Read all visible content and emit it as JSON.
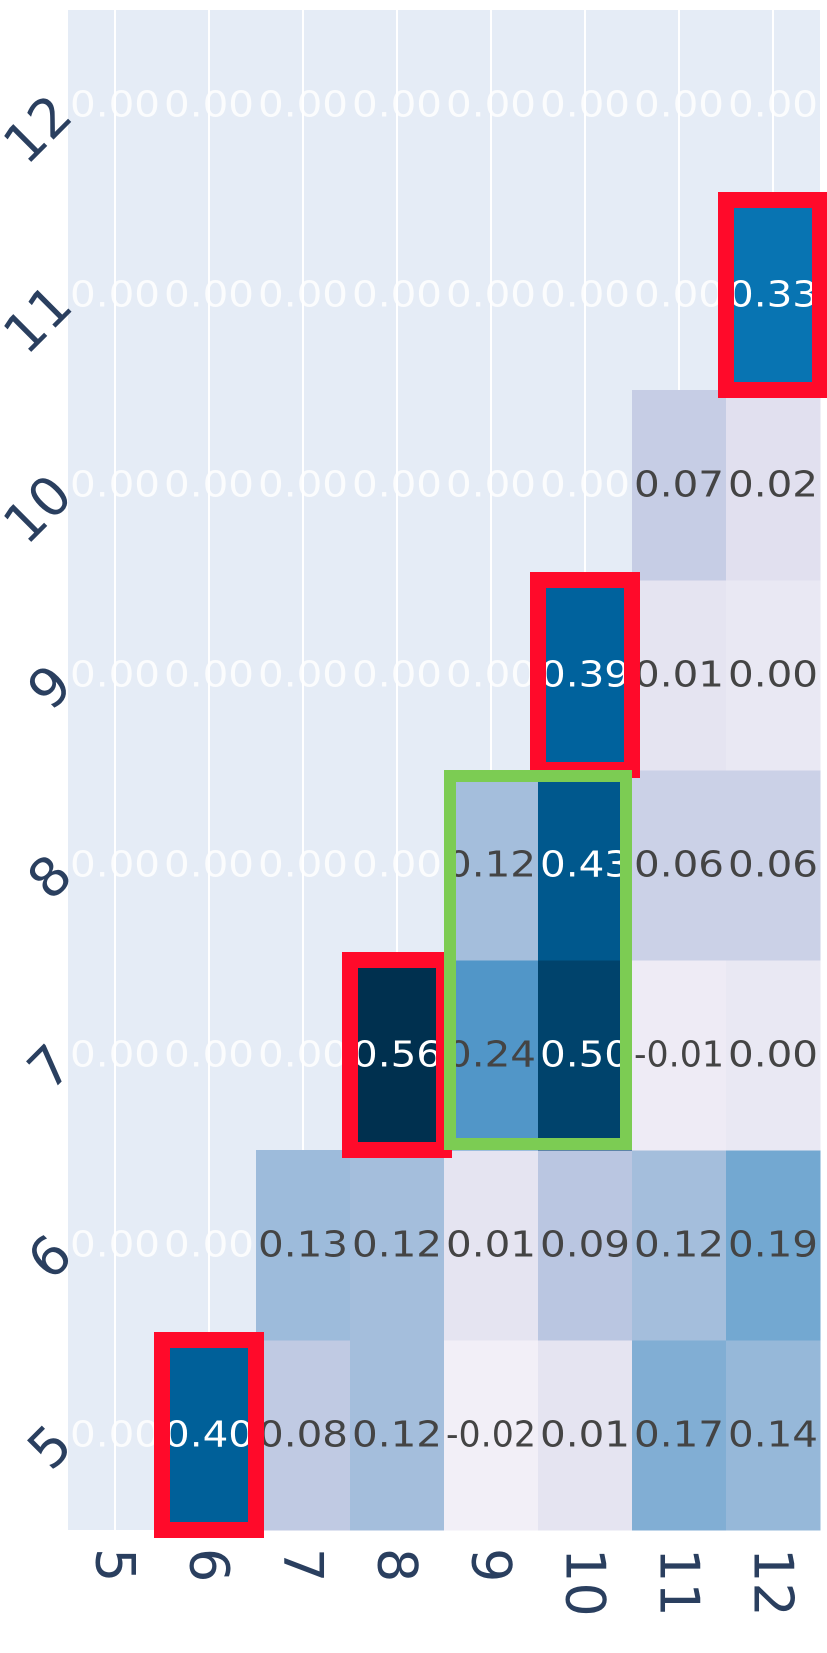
{
  "chart_data": {
    "type": "heatmap",
    "title": "",
    "xlabel": "",
    "ylabel": "",
    "x_categories": [
      "5",
      "6",
      "7",
      "8",
      "9",
      "10",
      "11",
      "12"
    ],
    "y_categories": [
      "5",
      "6",
      "7",
      "8",
      "9",
      "10",
      "11",
      "12"
    ],
    "x_tick_labels": [
      "5",
      "6",
      "7",
      "8",
      "9",
      "10",
      "11",
      "12"
    ],
    "y_tick_labels": [
      "5",
      "6",
      "7",
      "8",
      "9",
      "10",
      "11",
      "12"
    ],
    "colorscale": [
      "#f2eff7",
      "#00304f"
    ],
    "zlim": [
      -0.02,
      0.56
    ],
    "grid": true,
    "z": [
      [
        0.0,
        0.4,
        0.08,
        0.12,
        -0.02,
        0.01,
        0.17,
        0.14
      ],
      [
        0.0,
        0.0,
        0.13,
        0.12,
        0.01,
        0.09,
        0.12,
        0.19
      ],
      [
        0.0,
        0.0,
        0.0,
        0.56,
        0.24,
        0.5,
        -0.01,
        0.0
      ],
      [
        0.0,
        0.0,
        0.0,
        0.0,
        0.12,
        0.43,
        0.06,
        0.06
      ],
      [
        0.0,
        0.0,
        0.0,
        0.0,
        0.0,
        0.39,
        0.01,
        0.0
      ],
      [
        0.0,
        0.0,
        0.0,
        0.0,
        0.0,
        0.0,
        0.07,
        0.02
      ],
      [
        0.0,
        0.0,
        0.0,
        0.0,
        0.0,
        0.0,
        0.0,
        0.33
      ],
      [
        0.0,
        0.0,
        0.0,
        0.0,
        0.0,
        0.0,
        0.0,
        0.0
      ]
    ],
    "masked": [
      [
        true,
        false,
        false,
        false,
        false,
        false,
        false,
        false
      ],
      [
        true,
        true,
        false,
        false,
        false,
        false,
        false,
        false
      ],
      [
        true,
        true,
        true,
        false,
        false,
        false,
        false,
        false
      ],
      [
        true,
        true,
        true,
        true,
        false,
        false,
        false,
        false
      ],
      [
        true,
        true,
        true,
        true,
        true,
        false,
        false,
        false
      ],
      [
        true,
        true,
        true,
        true,
        true,
        true,
        false,
        false
      ],
      [
        true,
        true,
        true,
        true,
        true,
        true,
        true,
        false
      ],
      [
        true,
        true,
        true,
        true,
        true,
        true,
        true,
        true
      ]
    ],
    "cell_labels": [
      [
        "0.00",
        "0.40",
        "0.08",
        "0.12",
        "-0.02",
        "0.01",
        "0.17",
        "0.14"
      ],
      [
        "0.00",
        "0.00",
        "0.13",
        "0.12",
        "0.01",
        "0.09",
        "0.12",
        "0.19"
      ],
      [
        "0.00",
        "0.00",
        "0.00",
        "0.56",
        "0.24",
        "0.50",
        "-0.01",
        "0.00"
      ],
      [
        "0.00",
        "0.00",
        "0.00",
        "0.00",
        "0.12",
        "0.43",
        "0.06",
        "0.06"
      ],
      [
        "0.00",
        "0.00",
        "0.00",
        "0.00",
        "0.00",
        "0.39",
        "0.01",
        "0.00"
      ],
      [
        "0.00",
        "0.00",
        "0.00",
        "0.00",
        "0.00",
        "0.00",
        "0.07",
        "0.02"
      ],
      [
        "0.00",
        "0.00",
        "0.00",
        "0.00",
        "0.00",
        "0.00",
        "0.00",
        "0.33"
      ],
      [
        "0.00",
        "0.00",
        "0.00",
        "0.00",
        "0.00",
        "0.00",
        "0.00",
        "0.00"
      ]
    ],
    "highlights": [
      {
        "style": "red",
        "x": [
          "6",
          "6"
        ],
        "y": [
          "5",
          "5"
        ]
      },
      {
        "style": "red",
        "x": [
          "8",
          "8"
        ],
        "y": [
          "7",
          "7"
        ]
      },
      {
        "style": "red",
        "x": [
          "10",
          "10"
        ],
        "y": [
          "9",
          "9"
        ]
      },
      {
        "style": "red",
        "x": [
          "12",
          "12"
        ],
        "y": [
          "11",
          "11"
        ]
      },
      {
        "style": "green",
        "x": [
          "9",
          "10"
        ],
        "y": [
          "7",
          "8"
        ]
      }
    ],
    "colors": {
      "plot_background": "#e5ecf6",
      "gridline": "#ffffff",
      "tick_text": "#2a3f5f",
      "dark_text": "#444444",
      "light_text": "#ffffff",
      "highlight_red": "#ff0a2a",
      "highlight_green": "#7ccc53"
    }
  }
}
